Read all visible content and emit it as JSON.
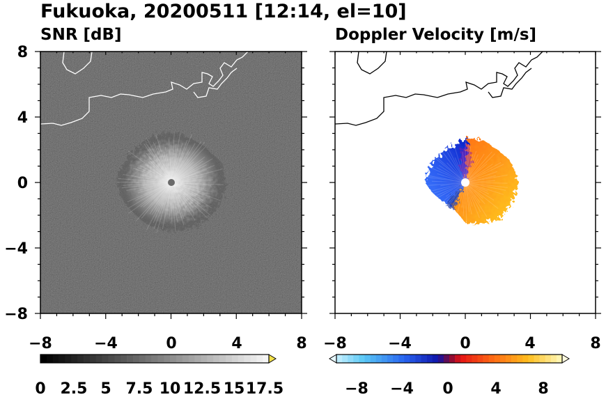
{
  "figure": {
    "title": "Fukuoka, 20200511 [12:14, el=10]"
  },
  "panels": [
    {
      "title": "SNR [dB]",
      "xticks": [
        "−8",
        "−4",
        "0",
        "4",
        "8"
      ],
      "yticks": [
        "8",
        "4",
        "0",
        "−4",
        "−8"
      ]
    },
    {
      "title": "Doppler Velocity [m/s]",
      "xticks": [
        "−8",
        "−4",
        "0",
        "4",
        "8"
      ],
      "yticks": []
    }
  ],
  "colorbars": [
    {
      "ticks": [
        "0",
        "2.5",
        "5",
        "7.5",
        "10",
        "12.5",
        "15",
        "17.5"
      ]
    },
    {
      "ticks": [
        "−8",
        "−4",
        "0",
        "4",
        "8"
      ]
    }
  ],
  "chart_data": [
    {
      "type": "heatmap",
      "title": "SNR [dB]",
      "xlim": [
        -8,
        8
      ],
      "ylim": [
        -8,
        8
      ],
      "x_ticks": [
        -8,
        -4,
        0,
        4,
        8
      ],
      "y_ticks": [
        -8,
        -4,
        0,
        4,
        8
      ],
      "color_scale": "grayscale",
      "colorbar_range": [
        0,
        18.5
      ],
      "colorbar_ticks": [
        0,
        2.5,
        5,
        7.5,
        10,
        12.5,
        15,
        17.5
      ],
      "colorbar_extend": "max",
      "echo_center": [
        0,
        0
      ],
      "echo_radius": 3.2,
      "background": "dark noise",
      "coastline": true
    },
    {
      "type": "heatmap",
      "title": "Doppler Velocity [m/s]",
      "xlim": [
        -8,
        8
      ],
      "ylim": [
        -8,
        8
      ],
      "x_ticks": [
        -8,
        -4,
        0,
        4,
        8
      ],
      "y_ticks": [
        -8,
        -4,
        0,
        4,
        8
      ],
      "color_scale": "blue-white-red diverging",
      "colorbar_range": [
        -10,
        10
      ],
      "colorbar_ticks": [
        -8,
        -4,
        0,
        4,
        8
      ],
      "colorbar_extend": "both",
      "echo_center": [
        0,
        0
      ],
      "echo_radius": 3.0,
      "west_side": "negative (blue)",
      "east_side": "positive (orange/yellow)",
      "coastline": true
    }
  ],
  "colors": {
    "snr_background": "#1a1a1a",
    "velocity_negative": "#1e3cdc",
    "velocity_positive": "#ff8c1a"
  }
}
